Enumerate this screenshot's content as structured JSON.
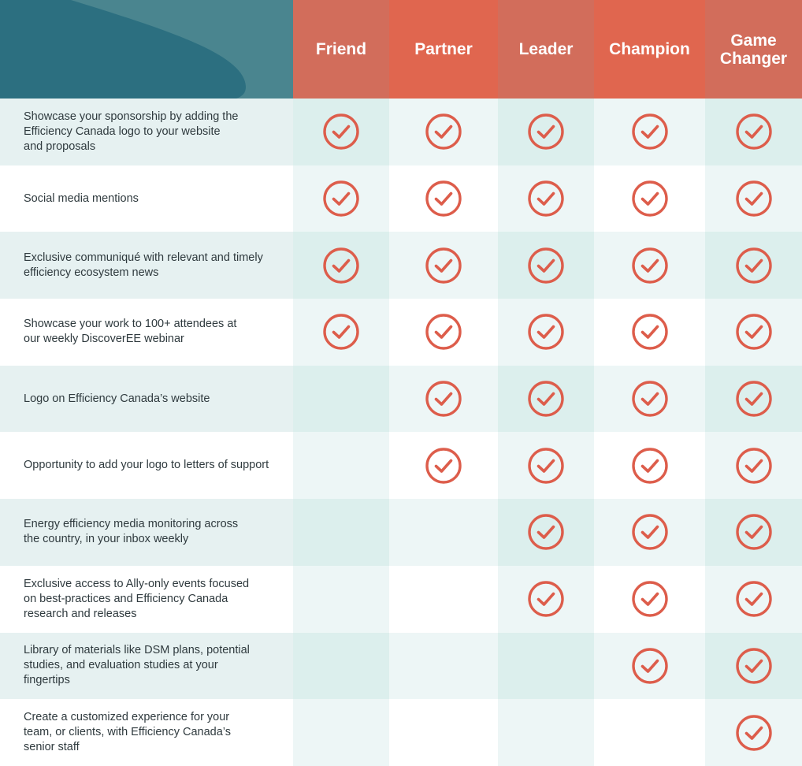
{
  "colors": {
    "header_coral": "#e0664f",
    "header_coral_alt": "#d26d5b",
    "corner_teal_dark": "#2c6f80",
    "corner_teal_light": "#4a858f",
    "check_color": "#dd5d4b",
    "row_teal": "#e6f1f1",
    "row_white": "#ffffff",
    "col_teal": "#dcefed",
    "col_light": "#edf6f6"
  },
  "tiers": [
    {
      "label": "Friend"
    },
    {
      "label": "Partner"
    },
    {
      "label": "Leader"
    },
    {
      "label": "Champion"
    },
    {
      "label": "Game\nChanger"
    }
  ],
  "check_icon": "check-circle-icon",
  "features": [
    {
      "label": "Showcase your sponsorship by adding the\nEfficiency Canada logo to your website\nand proposals",
      "included": [
        true,
        true,
        true,
        true,
        true
      ]
    },
    {
      "label": "Social media mentions",
      "included": [
        true,
        true,
        true,
        true,
        true
      ]
    },
    {
      "label": "Exclusive communiqué with relevant and timely\nefficiency ecosystem news",
      "included": [
        true,
        true,
        true,
        true,
        true
      ]
    },
    {
      "label": "Showcase your work to 100+ attendees at\nour weekly DiscoverEE webinar",
      "included": [
        true,
        true,
        true,
        true,
        true
      ]
    },
    {
      "label": "Logo on Efficiency Canada’s website",
      "included": [
        false,
        true,
        true,
        true,
        true
      ]
    },
    {
      "label": "Opportunity to add your logo to letters of support",
      "included": [
        false,
        true,
        true,
        true,
        true
      ]
    },
    {
      "label": "Energy efficiency media monitoring across\nthe country, in your inbox weekly",
      "included": [
        false,
        false,
        true,
        true,
        true
      ]
    },
    {
      "label": "Exclusive access to Ally-only events focused\non best-practices and Efficiency Canada\nresearch and releases",
      "included": [
        false,
        false,
        true,
        true,
        true
      ]
    },
    {
      "label": "Library of materials like DSM plans, potential\nstudies, and evaluation studies at your\nfingertips",
      "included": [
        false,
        false,
        false,
        true,
        true
      ]
    },
    {
      "label": "Create a customized experience for your\nteam, or clients, with Efficiency Canada’s\nsenior staff",
      "included": [
        false,
        false,
        false,
        false,
        true
      ]
    }
  ]
}
